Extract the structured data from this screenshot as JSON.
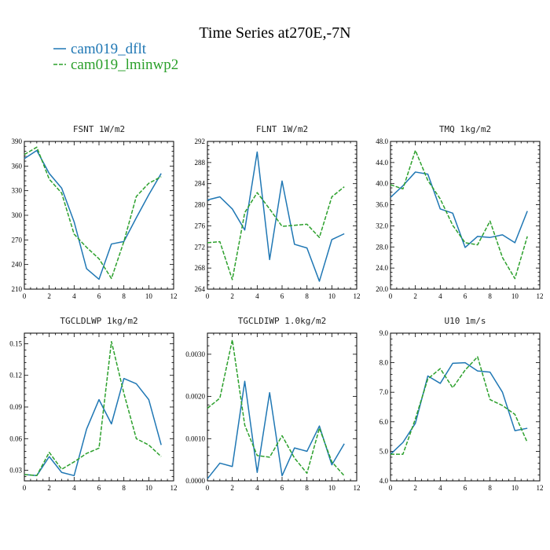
{
  "figure": {
    "title": "Time Series at270E,-7N",
    "legend": [
      {
        "label": "cam019_dflt",
        "color": "#1f77b4",
        "dash": "solid"
      },
      {
        "label": "cam019_lminwp2",
        "color": "#2ca02c",
        "dash": "dashed"
      }
    ]
  },
  "chart_data": [
    {
      "type": "line",
      "title": "FSNT  1W/m2",
      "xlim": [
        0,
        12
      ],
      "ylim": [
        210,
        390
      ],
      "xticks": [
        "0",
        "2",
        "4",
        "6",
        "8",
        "10",
        "12"
      ],
      "xtick_values": [
        0,
        2,
        4,
        6,
        8,
        10,
        12
      ],
      "yticks": [
        "210",
        "240",
        "270",
        "300",
        "330",
        "360",
        "390"
      ],
      "ytick_values": [
        210,
        240,
        270,
        300,
        330,
        360,
        390
      ],
      "x": [
        0,
        1,
        2,
        3,
        4,
        5,
        6,
        7,
        8,
        9,
        10,
        11
      ],
      "series": [
        {
          "name": "cam019_dflt",
          "values": [
            369,
            379,
            351,
            333,
            292,
            235,
            222,
            265,
            268,
            297,
            325,
            351
          ]
        },
        {
          "name": "cam019_lminwp2",
          "values": [
            374,
            383,
            344,
            327,
            277,
            261,
            247,
            223,
            268,
            323,
            339,
            347
          ]
        }
      ]
    },
    {
      "type": "line",
      "title": "FLNT  1W/m2",
      "xlim": [
        0,
        12
      ],
      "ylim": [
        264,
        292
      ],
      "xticks": [
        "0",
        "2",
        "4",
        "6",
        "8",
        "10",
        "12"
      ],
      "xtick_values": [
        0,
        2,
        4,
        6,
        8,
        10,
        12
      ],
      "yticks": [
        "264",
        "268",
        "272",
        "276",
        "280",
        "284",
        "288",
        "292"
      ],
      "ytick_values": [
        264,
        268,
        272,
        276,
        280,
        284,
        288,
        292
      ],
      "x": [
        0,
        1,
        2,
        3,
        4,
        5,
        6,
        7,
        8,
        9,
        10,
        11
      ],
      "series": [
        {
          "name": "cam019_dflt",
          "values": [
            280.9,
            281.5,
            279.2,
            275.2,
            290.0,
            269.6,
            284.5,
            272.5,
            271.8,
            265.5,
            273.4,
            274.5
          ]
        },
        {
          "name": "cam019_lminwp2",
          "values": [
            272.8,
            273.0,
            265.8,
            278.5,
            282.3,
            279.2,
            275.9,
            276.1,
            276.3,
            273.8,
            281.5,
            283.4
          ]
        }
      ]
    },
    {
      "type": "line",
      "title": "TMQ  1kg/m2",
      "xlim": [
        0,
        12
      ],
      "ylim": [
        20,
        48
      ],
      "xticks": [
        "0",
        "2",
        "4",
        "6",
        "8",
        "10",
        "12"
      ],
      "xtick_values": [
        0,
        2,
        4,
        6,
        8,
        10,
        12
      ],
      "yticks": [
        "20.0",
        "24.0",
        "28.0",
        "32.0",
        "36.0",
        "40.0",
        "44.0",
        "48.0"
      ],
      "ytick_values": [
        20,
        24,
        28,
        32,
        36,
        40,
        44,
        48
      ],
      "x": [
        0,
        1,
        2,
        3,
        4,
        5,
        6,
        7,
        8,
        9,
        10,
        11
      ],
      "series": [
        {
          "name": "cam019_dflt",
          "values": [
            37.4,
            39.6,
            42.2,
            41.8,
            35.2,
            34.4,
            27.9,
            30.0,
            29.8,
            30.3,
            28.8,
            34.8
          ]
        },
        {
          "name": "cam019_lminwp2",
          "values": [
            39.8,
            39.0,
            46.3,
            40.6,
            37.1,
            32.1,
            28.8,
            28.4,
            32.9,
            26.0,
            22.0,
            30.0
          ]
        }
      ]
    },
    {
      "type": "line",
      "title": "TGCLDLWP  1kg/m2",
      "xlim": [
        0,
        12
      ],
      "ylim": [
        0.02,
        0.16
      ],
      "xticks": [
        "0",
        "2",
        "4",
        "6",
        "8",
        "10",
        "12"
      ],
      "xtick_values": [
        0,
        2,
        4,
        6,
        8,
        10,
        12
      ],
      "yticks": [
        "0.03",
        "0.06",
        "0.09",
        "0.12",
        "0.15"
      ],
      "ytick_values": [
        0.03,
        0.06,
        0.09,
        0.12,
        0.15
      ],
      "x": [
        0,
        1,
        2,
        3,
        4,
        5,
        6,
        7,
        8,
        9,
        10,
        11
      ],
      "series": [
        {
          "name": "cam019_dflt",
          "values": [
            0.026,
            0.025,
            0.043,
            0.028,
            0.025,
            0.069,
            0.097,
            0.074,
            0.117,
            0.112,
            0.097,
            0.054
          ]
        },
        {
          "name": "cam019_lminwp2",
          "values": [
            0.026,
            0.025,
            0.047,
            0.031,
            0.038,
            0.046,
            0.051,
            0.152,
            0.103,
            0.06,
            0.054,
            0.043
          ]
        }
      ]
    },
    {
      "type": "line",
      "title": "TGCLDIWP  1.0kg/m2",
      "xlim": [
        0,
        12
      ],
      "ylim": [
        0,
        0.0035
      ],
      "xticks": [
        "0",
        "2",
        "4",
        "6",
        "8",
        "10",
        "12"
      ],
      "xtick_values": [
        0,
        2,
        4,
        6,
        8,
        10,
        12
      ],
      "yticks": [
        "0.0000",
        "0.0010",
        "0.0020",
        "0.0030"
      ],
      "ytick_values": [
        0,
        0.001,
        0.002,
        0.003
      ],
      "x": [
        0,
        1,
        2,
        3,
        4,
        5,
        6,
        7,
        8,
        9,
        10,
        11
      ],
      "series": [
        {
          "name": "cam019_dflt",
          "values": [
            5e-05,
            0.00042,
            0.00034,
            0.00236,
            0.0002,
            0.00209,
            0.00012,
            0.00078,
            0.0007,
            0.0013,
            0.00038,
            0.00088
          ]
        },
        {
          "name": "cam019_lminwp2",
          "values": [
            0.00172,
            0.00196,
            0.00334,
            0.00132,
            0.0006,
            0.00056,
            0.00107,
            0.00054,
            0.00018,
            0.00125,
            0.00045,
            0.00012
          ]
        }
      ]
    },
    {
      "type": "line",
      "title": "U10  1m/s",
      "xlim": [
        0,
        12
      ],
      "ylim": [
        4,
        9
      ],
      "xticks": [
        "0",
        "2",
        "4",
        "6",
        "8",
        "10",
        "12"
      ],
      "xtick_values": [
        0,
        2,
        4,
        6,
        8,
        10,
        12
      ],
      "yticks": [
        "4.0",
        "5.0",
        "6.0",
        "7.0",
        "8.0",
        "9.0"
      ],
      "ytick_values": [
        4,
        5,
        6,
        7,
        8,
        9
      ],
      "x": [
        0,
        1,
        2,
        3,
        4,
        5,
        6,
        7,
        8,
        9,
        10,
        11
      ],
      "series": [
        {
          "name": "cam019_dflt",
          "values": [
            4.9,
            5.3,
            5.95,
            7.55,
            7.3,
            7.98,
            8.0,
            7.72,
            7.68,
            7.0,
            5.7,
            5.78
          ]
        },
        {
          "name": "cam019_lminwp2",
          "values": [
            4.9,
            4.9,
            6.1,
            7.45,
            7.8,
            7.15,
            7.75,
            8.2,
            6.75,
            6.55,
            6.25,
            5.3
          ]
        }
      ]
    }
  ]
}
